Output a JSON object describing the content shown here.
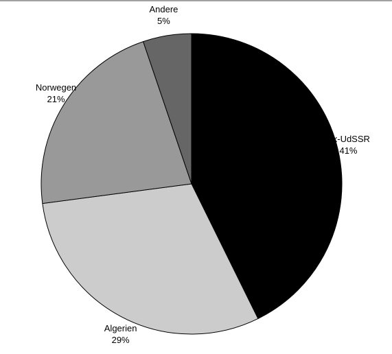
{
  "chart_data": {
    "type": "pie",
    "categories": [
      "Ex-UdSSR",
      "Algerien",
      "Norwegen",
      "Andere"
    ],
    "values": [
      41,
      29,
      21,
      5
    ],
    "value_labels": [
      "41%",
      "29%",
      "21%",
      "5%"
    ],
    "colors": [
      "#000000",
      "#cccccc",
      "#999999",
      "#666666"
    ]
  }
}
